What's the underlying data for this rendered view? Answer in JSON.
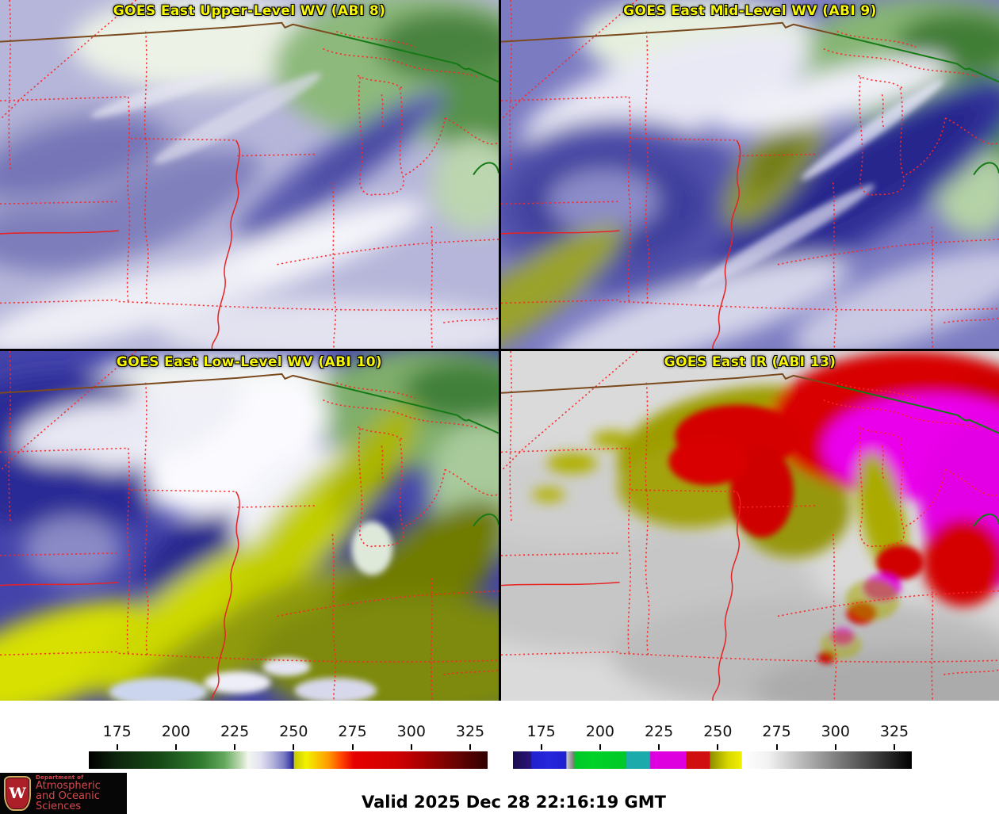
{
  "panels": [
    {
      "id": "upper_wv",
      "title": "GOES East Upper-Level WV (ABI 8)"
    },
    {
      "id": "mid_wv",
      "title": "GOES East Mid-Level WV (ABI 9)"
    },
    {
      "id": "low_wv",
      "title": "GOES East Low-Level WV (ABI 10)"
    },
    {
      "id": "ir",
      "title": "GOES East IR (ABI 13)"
    }
  ],
  "colorbars": [
    {
      "name": "water-vapor-brightness-temperature-scale",
      "domain": [
        163,
        332.4
      ],
      "ticks": [
        "175",
        "200",
        "225",
        "250",
        "275",
        "300",
        "325"
      ],
      "tick_values": [
        175,
        200,
        225,
        250,
        275,
        300,
        325
      ],
      "stops": [
        {
          "p": 0.0,
          "c": "#000000"
        },
        {
          "p": 0.07,
          "c": "#0d260d"
        },
        {
          "p": 0.18,
          "c": "#174a17"
        },
        {
          "p": 0.28,
          "c": "#2f7a2f"
        },
        {
          "p": 0.34,
          "c": "#63a85c"
        },
        {
          "p": 0.375,
          "c": "#b5d4a9"
        },
        {
          "p": 0.4,
          "c": "#f3f7ef"
        },
        {
          "p": 0.43,
          "c": "#e2e2f1"
        },
        {
          "p": 0.46,
          "c": "#b7b7dc"
        },
        {
          "p": 0.49,
          "c": "#7a7ac4"
        },
        {
          "p": 0.505,
          "c": "#4343ae"
        },
        {
          "p": 0.513,
          "c": "#1d1d8f"
        },
        {
          "p": 0.515,
          "c": "#c8c800"
        },
        {
          "p": 0.545,
          "c": "#f2f200"
        },
        {
          "p": 0.6,
          "c": "#ff9c00"
        },
        {
          "p": 0.635,
          "c": "#ff4000"
        },
        {
          "p": 0.665,
          "c": "#e60000"
        },
        {
          "p": 0.78,
          "c": "#cc0000"
        },
        {
          "p": 0.845,
          "c": "#a30000"
        },
        {
          "p": 0.92,
          "c": "#6b0303"
        },
        {
          "p": 1.0,
          "c": "#2e0101"
        }
      ]
    },
    {
      "name": "infrared-brightness-temperature-scale",
      "domain": [
        163,
        332.4
      ],
      "ticks": [
        "175",
        "200",
        "225",
        "250",
        "275",
        "300",
        "325"
      ],
      "tick_values": [
        175,
        200,
        225,
        250,
        275,
        300,
        325
      ],
      "stops": [
        {
          "p": 0.0,
          "c": "#1a0c4e"
        },
        {
          "p": 0.045,
          "c": "#2a1478"
        },
        {
          "p": 0.047,
          "c": "#2121cf"
        },
        {
          "p": 0.09,
          "c": "#2626dc"
        },
        {
          "p": 0.133,
          "c": "#2121cf"
        },
        {
          "p": 0.135,
          "c": "#c6c6c6"
        },
        {
          "p": 0.153,
          "c": "#787878"
        },
        {
          "p": 0.155,
          "c": "#00c828"
        },
        {
          "p": 0.2,
          "c": "#00d228"
        },
        {
          "p": 0.283,
          "c": "#00c828"
        },
        {
          "p": 0.285,
          "c": "#1caaaa"
        },
        {
          "p": 0.343,
          "c": "#1caaaa"
        },
        {
          "p": 0.345,
          "c": "#de00de"
        },
        {
          "p": 0.433,
          "c": "#de00de"
        },
        {
          "p": 0.435,
          "c": "#d01010"
        },
        {
          "p": 0.493,
          "c": "#d01010"
        },
        {
          "p": 0.495,
          "c": "#8f8f00"
        },
        {
          "p": 0.54,
          "c": "#d8d800"
        },
        {
          "p": 0.573,
          "c": "#f0f000"
        },
        {
          "p": 0.575,
          "c": "#ffffff"
        },
        {
          "p": 0.64,
          "c": "#f2f2f2"
        },
        {
          "p": 1.0,
          "c": "#000000"
        }
      ]
    }
  ],
  "chart_data": {
    "type": "heatmap",
    "title": "GOES East quad-panel brightness temperature legends (K)",
    "axis_ranges": {
      "colorbar_min": 163,
      "colorbar_max": 332.4
    },
    "tick_labels": [
      175,
      200,
      225,
      250,
      275,
      300,
      325
    ]
  },
  "footer": {
    "valid_label": "Valid 2025 Dec 28 22:16:19 GMT",
    "logo": {
      "initial": "W",
      "dept": "Department of",
      "line1": "Atmospheric",
      "line2": "and Oceanic Sciences"
    }
  },
  "colors": {
    "title_text": "#f7f700",
    "state_border": "#ff2626",
    "river_solid": "#e82222",
    "canada_border_brown": "#7a4a1e",
    "coast_green": "#157a15",
    "logo_red": "#d4494f",
    "crest_red": "#ad1f28",
    "crest_gold": "#d3ae62"
  }
}
